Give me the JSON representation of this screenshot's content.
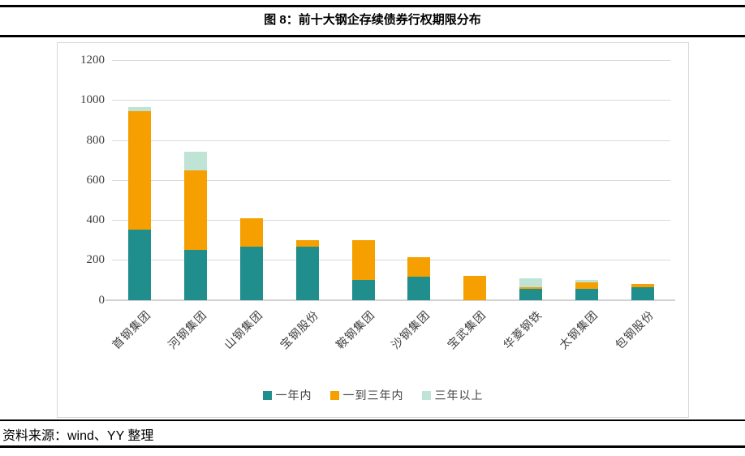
{
  "header": {
    "title": "图 8：前十大钢企存续债券行权期限分布"
  },
  "footer": {
    "source": "资料来源：wind、YY 整理"
  },
  "colors": {
    "rule": "#000000",
    "card_border": "#d8d8d8",
    "gridline": "#d9d9d9",
    "axis_text": "#404040",
    "series_within_1y": "#1f8e8c",
    "series_1_to_3y": "#f5a000",
    "series_over_3y": "#bfe3d4"
  },
  "chart_data": {
    "type": "bar",
    "stacked": true,
    "title": "图 8：前十大钢企存续债券行权期限分布",
    "xlabel": "",
    "ylabel": "",
    "ylim": [
      0,
      1200
    ],
    "yticks": [
      0,
      200,
      400,
      600,
      800,
      1000,
      1200
    ],
    "grid": true,
    "legend_position": "bottom",
    "categories": [
      "首钢集团",
      "河钢集团",
      "山钢集团",
      "宝钢股份",
      "鞍钢集团",
      "沙钢集团",
      "宝武集团",
      "华菱钢铁",
      "太钢集团",
      "包钢股份"
    ],
    "series": [
      {
        "name": "一年内",
        "color": "#1f8e8c",
        "values": [
          350,
          250,
          265,
          267,
          100,
          115,
          0,
          55,
          55,
          65
        ]
      },
      {
        "name": "一到三年内",
        "color": "#f5a000",
        "values": [
          595,
          400,
          145,
          33,
          200,
          100,
          120,
          8,
          35,
          15
        ]
      },
      {
        "name": "三年以上",
        "color": "#bfe3d4",
        "values": [
          20,
          90,
          0,
          0,
          0,
          0,
          0,
          47,
          10,
          0
        ]
      }
    ],
    "totals": [
      965,
      740,
      410,
      300,
      300,
      215,
      120,
      110,
      100,
      80
    ]
  }
}
